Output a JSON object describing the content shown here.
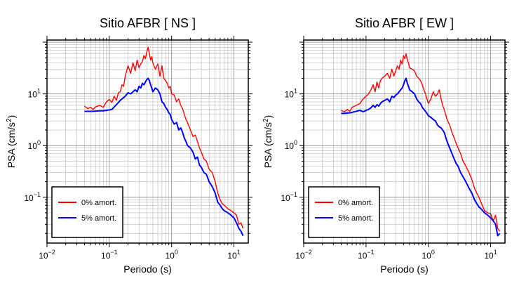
{
  "chart_data": [
    {
      "type": "line",
      "title": "Sitio AFBR [ NS ]",
      "xlabel": "Periodo (s)",
      "ylabel": "PSA (cm/s²)",
      "xscale": "log",
      "yscale": "log",
      "xlim": [
        0.01,
        17
      ],
      "ylim": [
        0.013,
        110
      ],
      "grid": true,
      "legend_position": "bottom-left",
      "xticks": [
        {
          "value": 0.01,
          "base": "10",
          "exp": "−2"
        },
        {
          "value": 0.1,
          "base": "10",
          "exp": "−1"
        },
        {
          "value": 1,
          "base": "10",
          "exp": "0"
        },
        {
          "value": 10,
          "base": "10",
          "exp": "1"
        }
      ],
      "yticks": [
        {
          "value": 0.1,
          "base": "10",
          "exp": "−1"
        },
        {
          "value": 1,
          "base": "10",
          "exp": "0"
        },
        {
          "value": 10,
          "base": "10",
          "exp": "1"
        }
      ],
      "series": [
        {
          "name": "0% amort.",
          "color": "#ff0000",
          "x": [
            0.04,
            0.045,
            0.05,
            0.055,
            0.06,
            0.07,
            0.08,
            0.09,
            0.1,
            0.11,
            0.12,
            0.13,
            0.14,
            0.15,
            0.16,
            0.17,
            0.18,
            0.2,
            0.22,
            0.24,
            0.26,
            0.28,
            0.3,
            0.32,
            0.34,
            0.36,
            0.38,
            0.4,
            0.42,
            0.44,
            0.46,
            0.48,
            0.5,
            0.55,
            0.6,
            0.65,
            0.7,
            0.75,
            0.8,
            0.85,
            0.9,
            0.95,
            1.0,
            1.1,
            1.2,
            1.3,
            1.4,
            1.5,
            1.6,
            1.7,
            1.8,
            2.0,
            2.2,
            2.4,
            2.6,
            2.8,
            3.0,
            3.3,
            3.6,
            4.0,
            4.5,
            5.0,
            5.5,
            6.0,
            6.5,
            7.0,
            8.0,
            9.0,
            10.0,
            11.0,
            12.0,
            13.0,
            14.0
          ],
          "y": [
            5.8,
            5.2,
            5.5,
            5.0,
            5.6,
            6.0,
            5.5,
            7.0,
            7.8,
            6.8,
            9.0,
            7.5,
            10.5,
            11.0,
            15.0,
            14.0,
            22.0,
            35.0,
            25.0,
            40.0,
            28.0,
            45.0,
            32.0,
            38.0,
            42.0,
            55.0,
            48.0,
            65.0,
            80.0,
            60.0,
            45.0,
            52.0,
            40.0,
            30.0,
            38.0,
            22.0,
            35.0,
            20.0,
            18.0,
            16.0,
            13.0,
            14.0,
            10.0,
            9.5,
            7.0,
            8.0,
            6.0,
            5.2,
            4.0,
            3.2,
            2.8,
            2.0,
            1.5,
            1.6,
            1.2,
            0.9,
            0.75,
            0.55,
            0.5,
            0.35,
            0.3,
            0.2,
            0.12,
            0.09,
            0.075,
            0.07,
            0.06,
            0.055,
            0.05,
            0.045,
            0.03,
            0.032,
            0.025
          ]
        },
        {
          "name": "5% amort.",
          "color": "#0000ff",
          "x": [
            0.04,
            0.045,
            0.05,
            0.055,
            0.06,
            0.07,
            0.08,
            0.09,
            0.1,
            0.11,
            0.12,
            0.13,
            0.14,
            0.15,
            0.16,
            0.17,
            0.18,
            0.2,
            0.22,
            0.24,
            0.26,
            0.28,
            0.3,
            0.32,
            0.34,
            0.36,
            0.38,
            0.4,
            0.42,
            0.44,
            0.46,
            0.48,
            0.5,
            0.55,
            0.6,
            0.65,
            0.7,
            0.75,
            0.8,
            0.85,
            0.9,
            0.95,
            1.0,
            1.1,
            1.2,
            1.3,
            1.4,
            1.5,
            1.6,
            1.7,
            1.8,
            2.0,
            2.2,
            2.4,
            2.6,
            2.8,
            3.0,
            3.3,
            3.6,
            4.0,
            4.5,
            5.0,
            5.5,
            6.0,
            6.5,
            7.0,
            8.0,
            9.0,
            10.0,
            11.0,
            12.0,
            13.0,
            14.0
          ],
          "y": [
            4.6,
            4.6,
            4.6,
            4.6,
            4.65,
            4.7,
            4.7,
            4.8,
            4.9,
            5.0,
            5.6,
            6.2,
            6.8,
            7.5,
            8.0,
            8.5,
            9.0,
            10.5,
            10.0,
            11.0,
            12.0,
            11.0,
            14.0,
            13.0,
            16.0,
            15.0,
            17.0,
            19.0,
            20.0,
            18.0,
            15.0,
            13.0,
            11.0,
            13.0,
            12.0,
            10.0,
            7.0,
            6.5,
            5.5,
            5.0,
            4.3,
            4.0,
            3.2,
            2.6,
            2.8,
            2.0,
            2.2,
            1.8,
            1.4,
            1.2,
            1.0,
            0.9,
            0.75,
            0.55,
            0.6,
            0.42,
            0.38,
            0.3,
            0.28,
            0.2,
            0.16,
            0.12,
            0.08,
            0.07,
            0.06,
            0.055,
            0.05,
            0.045,
            0.04,
            0.032,
            0.025,
            0.022,
            0.018
          ]
        }
      ]
    },
    {
      "type": "line",
      "title": "Sitio AFBR [ EW ]",
      "xlabel": "Periodo (s)",
      "ylabel": "PSA (cm/s²)",
      "xscale": "log",
      "yscale": "log",
      "xlim": [
        0.01,
        17
      ],
      "ylim": [
        0.013,
        110
      ],
      "grid": true,
      "legend_position": "bottom-left",
      "xticks": [
        {
          "value": 0.01,
          "base": "10",
          "exp": "−2"
        },
        {
          "value": 0.1,
          "base": "10",
          "exp": "−1"
        },
        {
          "value": 1,
          "base": "10",
          "exp": "0"
        },
        {
          "value": 10,
          "base": "10",
          "exp": "1"
        }
      ],
      "yticks": [
        {
          "value": 0.1,
          "base": "10",
          "exp": "−1"
        },
        {
          "value": 1,
          "base": "10",
          "exp": "0"
        },
        {
          "value": 10,
          "base": "10",
          "exp": "1"
        }
      ],
      "series": [
        {
          "name": "0% amort.",
          "color": "#ff0000",
          "x": [
            0.04,
            0.045,
            0.05,
            0.055,
            0.06,
            0.07,
            0.08,
            0.09,
            0.1,
            0.11,
            0.12,
            0.13,
            0.14,
            0.15,
            0.16,
            0.17,
            0.18,
            0.2,
            0.22,
            0.24,
            0.26,
            0.28,
            0.3,
            0.32,
            0.34,
            0.36,
            0.38,
            0.4,
            0.42,
            0.44,
            0.46,
            0.48,
            0.5,
            0.55,
            0.6,
            0.65,
            0.7,
            0.75,
            0.8,
            0.85,
            0.9,
            0.95,
            1.0,
            1.1,
            1.2,
            1.3,
            1.4,
            1.5,
            1.6,
            1.7,
            1.8,
            2.0,
            2.2,
            2.4,
            2.6,
            2.8,
            3.0,
            3.3,
            3.6,
            4.0,
            4.5,
            5.0,
            5.5,
            6.0,
            6.5,
            7.0,
            8.0,
            9.0,
            10.0,
            11.0,
            12.0,
            13.0,
            14.0
          ],
          "y": [
            4.8,
            4.5,
            5.0,
            4.6,
            5.5,
            6.0,
            6.5,
            8.0,
            9.0,
            10.0,
            12.0,
            15.0,
            11.0,
            17.0,
            13.0,
            18.0,
            20.0,
            22.0,
            25.0,
            20.0,
            30.0,
            22.0,
            28.0,
            35.0,
            30.0,
            45.0,
            38.0,
            55.0,
            48.0,
            60.0,
            45.0,
            40.0,
            32.0,
            30.0,
            28.0,
            22.0,
            20.0,
            18.0,
            15.0,
            12.0,
            10.0,
            8.0,
            6.5,
            8.0,
            11.0,
            9.0,
            10.0,
            12.0,
            8.0,
            6.0,
            5.0,
            3.2,
            2.5,
            1.8,
            1.4,
            1.1,
            0.9,
            0.7,
            0.5,
            0.4,
            0.3,
            0.22,
            0.15,
            0.12,
            0.1,
            0.08,
            0.055,
            0.05,
            0.048,
            0.035,
            0.045,
            0.025,
            0.022
          ]
        },
        {
          "name": "5% amort.",
          "color": "#0000ff",
          "x": [
            0.04,
            0.045,
            0.05,
            0.055,
            0.06,
            0.07,
            0.08,
            0.09,
            0.1,
            0.11,
            0.12,
            0.13,
            0.14,
            0.15,
            0.16,
            0.17,
            0.18,
            0.2,
            0.22,
            0.24,
            0.26,
            0.28,
            0.3,
            0.32,
            0.34,
            0.36,
            0.38,
            0.4,
            0.42,
            0.44,
            0.46,
            0.48,
            0.5,
            0.55,
            0.6,
            0.65,
            0.7,
            0.75,
            0.8,
            0.85,
            0.9,
            0.95,
            1.0,
            1.1,
            1.2,
            1.3,
            1.4,
            1.5,
            1.6,
            1.7,
            1.8,
            2.0,
            2.2,
            2.4,
            2.6,
            2.8,
            3.0,
            3.3,
            3.6,
            4.0,
            4.5,
            5.0,
            5.5,
            6.0,
            6.5,
            7.0,
            8.0,
            9.0,
            10.0,
            11.0,
            12.0,
            13.0,
            14.0
          ],
          "y": [
            4.2,
            4.2,
            4.25,
            4.3,
            4.4,
            4.6,
            4.8,
            4.5,
            4.8,
            5.0,
            5.4,
            6.0,
            5.5,
            6.2,
            5.8,
            6.5,
            7.0,
            7.5,
            8.0,
            7.0,
            9.0,
            8.5,
            9.5,
            10.0,
            11.0,
            12.0,
            13.0,
            15.0,
            18.0,
            20.0,
            16.0,
            14.0,
            12.0,
            11.0,
            10.0,
            8.0,
            7.0,
            6.5,
            5.5,
            5.0,
            4.6,
            4.2,
            3.8,
            3.5,
            3.2,
            3.0,
            2.5,
            2.3,
            2.2,
            2.0,
            1.8,
            1.2,
            0.9,
            0.7,
            0.55,
            0.45,
            0.4,
            0.3,
            0.25,
            0.2,
            0.15,
            0.12,
            0.09,
            0.075,
            0.065,
            0.06,
            0.05,
            0.045,
            0.04,
            0.035,
            0.03,
            0.018,
            0.02
          ]
        }
      ]
    }
  ]
}
